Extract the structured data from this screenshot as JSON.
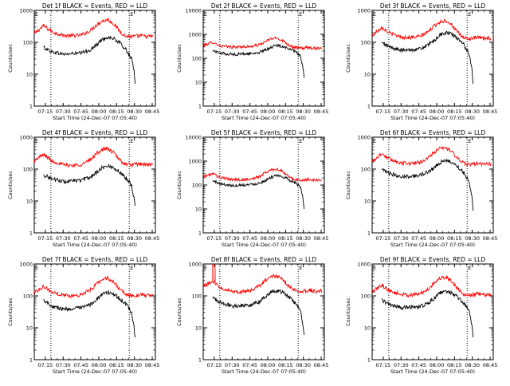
{
  "chart_data": [
    {
      "type": "line",
      "title": "Det 1f BLACK = Events, RED = LLD",
      "xlabel": "Start Time (24-Dec-07 07:05:40)",
      "ylabel": "Counts/sec",
      "x_unit": "minutes after 07:05:40",
      "xlim": [
        0,
        102
      ],
      "ylim": [
        1,
        1000
      ],
      "yscale": "log",
      "xticks": [
        "07:15",
        "07:30",
        "07:45",
        "08:00",
        "08:15",
        "08:30",
        "08:45"
      ],
      "yticks": [
        "1",
        "10",
        "100",
        "1000"
      ],
      "markers": [
        "E",
        "E"
      ],
      "vlines_x": [
        14,
        80
      ],
      "series": [
        {
          "color": "#ff0000",
          "x": [
            0,
            8,
            15,
            25,
            32,
            40,
            47,
            52,
            57,
            62,
            67,
            72,
            77,
            82,
            86,
            90,
            95,
            100
          ],
          "values": [
            185,
            330,
            210,
            165,
            160,
            170,
            230,
            340,
            460,
            510,
            380,
            220,
            155,
            150,
            155,
            160,
            150,
            155
          ]
        },
        {
          "color": "#000000",
          "x": [
            8,
            15,
            25,
            32,
            40,
            47,
            52,
            57,
            62,
            67,
            72,
            77,
            80,
            82,
            84,
            85
          ],
          "values": [
            68,
            50,
            42,
            44,
            46,
            58,
            80,
            120,
            145,
            130,
            95,
            60,
            40,
            30,
            12,
            5
          ]
        }
      ]
    },
    {
      "type": "line",
      "title": "Det 2f BLACK = Events, RED = LLD",
      "xlabel": "Start Time (24-Dec-07 07:05:40)",
      "ylabel": "Counts/sec",
      "x_unit": "minutes after 07:05:40",
      "xlim": [
        0,
        102
      ],
      "ylim": [
        1,
        10000
      ],
      "yscale": "log",
      "xticks": [
        "07:15",
        "07:30",
        "07:45",
        "08:00",
        "08:15",
        "08:30",
        "08:45"
      ],
      "yticks": [
        "1",
        "10",
        "100",
        "1000",
        "10000"
      ],
      "markers": [
        "E",
        "E"
      ],
      "vlines_x": [
        14,
        80
      ],
      "series": [
        {
          "color": "#ff0000",
          "x": [
            0,
            8,
            15,
            25,
            32,
            40,
            47,
            52,
            57,
            62,
            67,
            72,
            77,
            82,
            86,
            90,
            95,
            100
          ],
          "values": [
            330,
            470,
            320,
            290,
            300,
            310,
            360,
            470,
            650,
            700,
            550,
            360,
            280,
            260,
            270,
            280,
            260,
            270
          ]
        },
        {
          "color": "#000000",
          "x": [
            8,
            15,
            25,
            32,
            40,
            47,
            52,
            57,
            62,
            67,
            72,
            77,
            80,
            82,
            84,
            85
          ],
          "values": [
            210,
            160,
            145,
            150,
            155,
            175,
            215,
            290,
            340,
            320,
            250,
            190,
            150,
            120,
            40,
            15
          ]
        }
      ]
    },
    {
      "type": "line",
      "title": "Det 3f BLACK = Events, RED = LLD",
      "xlabel": "Start Time (24-Dec-07 07:05:40)",
      "ylabel": "Counts/sec",
      "x_unit": "minutes after 07:05:40",
      "xlim": [
        0,
        102
      ],
      "ylim": [
        1,
        1000
      ],
      "yscale": "log",
      "xticks": [
        "07:15",
        "07:30",
        "07:45",
        "08:00",
        "08:15",
        "08:30",
        "08:45"
      ],
      "yticks": [
        "1",
        "10",
        "100",
        "1000"
      ],
      "markers": [
        "E",
        "E"
      ],
      "vlines_x": [
        14,
        80
      ],
      "series": [
        {
          "color": "#ff0000",
          "x": [
            0,
            8,
            15,
            25,
            32,
            40,
            47,
            52,
            57,
            62,
            67,
            72,
            77,
            82,
            86,
            90,
            95,
            100
          ],
          "values": [
            160,
            300,
            190,
            145,
            140,
            150,
            210,
            320,
            440,
            480,
            360,
            200,
            140,
            130,
            135,
            140,
            130,
            135
          ]
        },
        {
          "color": "#000000",
          "x": [
            8,
            15,
            25,
            32,
            40,
            47,
            52,
            57,
            62,
            67,
            72,
            77,
            80,
            82,
            84,
            85
          ],
          "values": [
            95,
            70,
            55,
            58,
            62,
            80,
            110,
            170,
            200,
            180,
            130,
            85,
            55,
            40,
            15,
            5
          ]
        }
      ]
    },
    {
      "type": "line",
      "title": "Det 4f BLACK = Events, RED = LLD",
      "xlabel": "Start Time (24-Dec-07 07:05:40)",
      "ylabel": "Counts/sec",
      "x_unit": "minutes after 07:05:40",
      "xlim": [
        0,
        102
      ],
      "ylim": [
        1,
        1000
      ],
      "yscale": "log",
      "xticks": [
        "07:15",
        "07:30",
        "07:45",
        "08:00",
        "08:15",
        "08:30",
        "08:45"
      ],
      "yticks": [
        "1",
        "10",
        "100",
        "1000"
      ],
      "markers": [
        "E",
        "E"
      ],
      "vlines_x": [
        14,
        80
      ],
      "series": [
        {
          "color": "#ff0000",
          "x": [
            0,
            8,
            15,
            25,
            32,
            40,
            47,
            52,
            57,
            62,
            67,
            72,
            77,
            82,
            86,
            90,
            95,
            100
          ],
          "values": [
            180,
            290,
            180,
            135,
            130,
            140,
            190,
            300,
            410,
            430,
            320,
            190,
            140,
            135,
            140,
            145,
            135,
            140
          ]
        },
        {
          "color": "#000000",
          "x": [
            8,
            15,
            25,
            32,
            40,
            47,
            52,
            57,
            62,
            67,
            72,
            77,
            80,
            82,
            84,
            85
          ],
          "values": [
            65,
            50,
            40,
            42,
            45,
            55,
            78,
            110,
            125,
            110,
            80,
            55,
            40,
            30,
            12,
            7
          ]
        }
      ]
    },
    {
      "type": "line",
      "title": "Det 5f BLACK = Events, RED = LLD",
      "xlabel": "Start Time (24-Dec-07 07:05:40)",
      "ylabel": "Counts/sec",
      "x_unit": "minutes after 07:05:40",
      "xlim": [
        0,
        102
      ],
      "ylim": [
        1,
        10000
      ],
      "yscale": "log",
      "xticks": [
        "07:15",
        "07:30",
        "07:45",
        "08:00",
        "08:15",
        "08:30",
        "08:45"
      ],
      "yticks": [
        "1",
        "10",
        "100",
        "1000",
        "10000"
      ],
      "markers": [
        "E",
        "E"
      ],
      "vlines_x": [
        14,
        80
      ],
      "series": [
        {
          "color": "#ff0000",
          "x": [
            0,
            8,
            15,
            25,
            32,
            40,
            47,
            52,
            57,
            62,
            67,
            72,
            77,
            82,
            86,
            90,
            95,
            100
          ],
          "values": [
            220,
            300,
            200,
            170,
            165,
            175,
            220,
            320,
            430,
            470,
            360,
            220,
            170,
            160,
            165,
            170,
            160,
            165
          ]
        },
        {
          "color": "#000000",
          "x": [
            8,
            15,
            25,
            32,
            40,
            47,
            52,
            57,
            62,
            67,
            72,
            77,
            80,
            82,
            84,
            85
          ],
          "values": [
            150,
            110,
            95,
            100,
            105,
            120,
            155,
            210,
            240,
            220,
            170,
            125,
            100,
            80,
            30,
            10
          ]
        }
      ]
    },
    {
      "type": "line",
      "title": "Det 6f BLACK = Events, RED = LLD",
      "xlabel": "Start Time (24-Dec-07 07:05:40)",
      "ylabel": "Counts/sec",
      "x_unit": "minutes after 07:05:40",
      "xlim": [
        0,
        102
      ],
      "ylim": [
        1,
        1000
      ],
      "yscale": "log",
      "xticks": [
        "07:15",
        "07:30",
        "07:45",
        "08:00",
        "08:15",
        "08:30",
        "08:45"
      ],
      "yticks": [
        "1",
        "10",
        "100",
        "1000"
      ],
      "markers": [
        "E",
        "E"
      ],
      "vlines_x": [
        14,
        80
      ],
      "series": [
        {
          "color": "#ff0000",
          "x": [
            0,
            8,
            15,
            25,
            32,
            40,
            47,
            52,
            57,
            62,
            67,
            72,
            77,
            82,
            86,
            90,
            95,
            100
          ],
          "values": [
            170,
            310,
            200,
            155,
            150,
            160,
            220,
            330,
            440,
            470,
            360,
            210,
            150,
            140,
            145,
            150,
            140,
            145
          ]
        },
        {
          "color": "#000000",
          "x": [
            8,
            15,
            25,
            32,
            40,
            47,
            52,
            57,
            62,
            67,
            72,
            77,
            80,
            82,
            84,
            85
          ],
          "values": [
            95,
            72,
            58,
            60,
            64,
            80,
            110,
            160,
            185,
            165,
            120,
            80,
            52,
            38,
            14,
            5
          ]
        }
      ]
    },
    {
      "type": "line",
      "title": "Det 7f BLACK = Events, RED = LLD",
      "xlabel": "Start Time (24-Dec-07 07:05:40)",
      "ylabel": "Counts/sec",
      "x_unit": "minutes after 07:05:40",
      "xlim": [
        0,
        102
      ],
      "ylim": [
        1,
        1000
      ],
      "yscale": "log",
      "xticks": [
        "07:15",
        "07:30",
        "07:45",
        "08:00",
        "08:15",
        "08:30",
        "08:45"
      ],
      "yticks": [
        "1",
        "10",
        "100",
        "1000"
      ],
      "markers": [
        "E",
        "E"
      ],
      "vlines_x": [
        14,
        80
      ],
      "series": [
        {
          "color": "#ff0000",
          "x": [
            0,
            8,
            15,
            25,
            32,
            40,
            47,
            52,
            57,
            62,
            67,
            72,
            77,
            82,
            86,
            90,
            95,
            100
          ],
          "values": [
            130,
            200,
            130,
            105,
            100,
            110,
            150,
            230,
            330,
            360,
            270,
            160,
            110,
            100,
            105,
            110,
            100,
            105
          ]
        },
        {
          "color": "#000000",
          "x": [
            8,
            15,
            25,
            32,
            40,
            47,
            52,
            57,
            62,
            67,
            72,
            77,
            80,
            82,
            84,
            85
          ],
          "values": [
            75,
            48,
            38,
            40,
            42,
            52,
            75,
            110,
            130,
            115,
            82,
            55,
            40,
            28,
            10,
            5
          ]
        }
      ]
    },
    {
      "type": "line",
      "title": "Det 8f BLACK = Events, RED = LLD",
      "xlabel": "Start Time (24-Dec-07 07:05:40)",
      "ylabel": "Counts/sec",
      "x_unit": "minutes after 07:05:40",
      "xlim": [
        0,
        102
      ],
      "ylim": [
        1,
        1000
      ],
      "yscale": "log",
      "xticks": [
        "07:15",
        "07:30",
        "07:45",
        "08:00",
        "08:15",
        "08:30",
        "08:45"
      ],
      "yticks": [
        "1",
        "10",
        "100",
        "1000"
      ],
      "markers": [
        "E",
        "E"
      ],
      "vlines_x": [
        14,
        80
      ],
      "series": [
        {
          "color": "#ff0000",
          "x": [
            0,
            7.9,
            8,
            8.1,
            9.9,
            10,
            10.1,
            15,
            25,
            32,
            40,
            47,
            52,
            57,
            62,
            67,
            72,
            77,
            82,
            86,
            90,
            95,
            100
          ],
          "values": [
            200,
            280,
            1000,
            280,
            280,
            1000,
            250,
            180,
            140,
            135,
            145,
            200,
            300,
            400,
            420,
            320,
            200,
            150,
            140,
            145,
            150,
            140,
            145
          ]
        },
        {
          "color": "#000000",
          "x": [
            8,
            15,
            25,
            32,
            40,
            47,
            52,
            57,
            62,
            67,
            72,
            77,
            80,
            82,
            84,
            85
          ],
          "values": [
            90,
            60,
            48,
            50,
            52,
            65,
            95,
            130,
            145,
            130,
            95,
            62,
            45,
            32,
            12,
            6
          ]
        }
      ]
    },
    {
      "type": "line",
      "title": "Det 9f BLACK = Events, RED = LLD",
      "xlabel": "Start Time (24-Dec-07 07:05:40)",
      "ylabel": "Counts/sec",
      "x_unit": "minutes after 07:05:40",
      "xlim": [
        0,
        102
      ],
      "ylim": [
        1,
        1000
      ],
      "yscale": "log",
      "xticks": [
        "07:15",
        "07:30",
        "07:45",
        "08:00",
        "08:15",
        "08:30",
        "08:45"
      ],
      "yticks": [
        "1",
        "10",
        "100",
        "1000"
      ],
      "markers": [
        "E",
        "E"
      ],
      "vlines_x": [
        14,
        80
      ],
      "series": [
        {
          "color": "#ff0000",
          "x": [
            0,
            8,
            15,
            25,
            32,
            40,
            47,
            52,
            57,
            62,
            67,
            72,
            77,
            82,
            86,
            90,
            95,
            100
          ],
          "values": [
            130,
            220,
            140,
            110,
            105,
            115,
            160,
            250,
            360,
            390,
            290,
            170,
            115,
            105,
            110,
            115,
            105,
            110
          ]
        },
        {
          "color": "#000000",
          "x": [
            8,
            15,
            25,
            32,
            40,
            47,
            52,
            57,
            62,
            67,
            72,
            77,
            80,
            82,
            84,
            85
          ],
          "values": [
            75,
            52,
            42,
            44,
            46,
            58,
            82,
            120,
            140,
            125,
            90,
            60,
            44,
            32,
            12,
            5
          ]
        }
      ]
    }
  ]
}
